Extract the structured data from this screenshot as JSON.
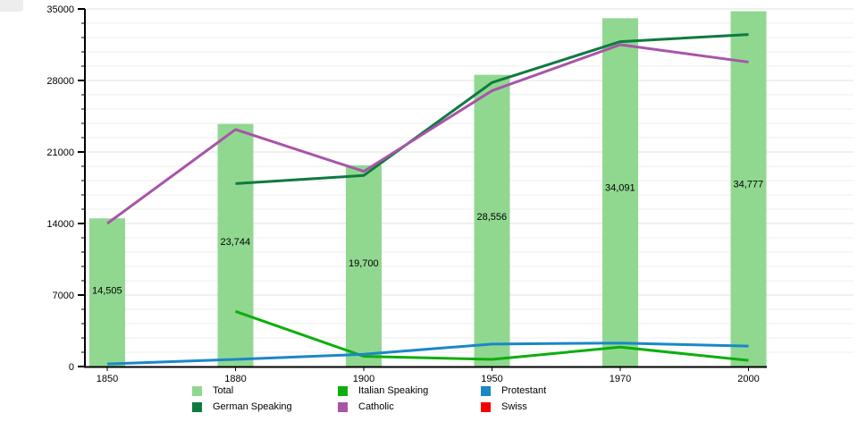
{
  "chart_data": {
    "type": "bar",
    "subtype": "bar-line-combo",
    "categories": [
      "1850",
      "1880",
      "1900",
      "1950",
      "1970",
      "2000"
    ],
    "y_axis": {
      "min": 0,
      "max": 35000,
      "major_step": 7000,
      "minor_step": 1400,
      "tick_labels": [
        "0",
        "7000",
        "14000",
        "21000",
        "28000",
        "35000"
      ]
    },
    "bars": {
      "name": "Total",
      "color": "#90d890",
      "values": [
        14505,
        23744,
        19700,
        28556,
        34091,
        34777
      ],
      "labels": [
        "14,505",
        "23,744",
        "19,700",
        "28,556",
        "34,091",
        "34,777"
      ]
    },
    "series": [
      {
        "name": "German Speaking",
        "color": "#0f7a40",
        "values": [
          null,
          17900,
          18700,
          27800,
          31800,
          32500
        ]
      },
      {
        "name": "Italian Speaking",
        "color": "#0caf0c",
        "values": [
          null,
          5400,
          1000,
          700,
          1900,
          600
        ]
      },
      {
        "name": "Protestant",
        "color": "#1a87c9",
        "values": [
          250,
          700,
          1200,
          2200,
          2300,
          2000
        ]
      },
      {
        "name": "Catholic",
        "color": "#a855a8",
        "values": [
          14000,
          23200,
          19100,
          27000,
          31500,
          29800
        ]
      }
    ],
    "grid": {
      "horizontal": true,
      "vertical": false
    },
    "legend_position": "bottom",
    "legend": {
      "columns": [
        [
          {
            "label": "Total",
            "color": "#90d890"
          },
          {
            "label": "German Speaking",
            "color": "#0f7a40"
          }
        ],
        [
          {
            "label": "Italian Speaking",
            "color": "#0caf0c"
          },
          {
            "label": "Catholic",
            "color": "#a855a8"
          }
        ],
        [
          {
            "label": "Protestant",
            "color": "#1a87c9"
          },
          {
            "label": "Swiss",
            "color": "#f40000"
          }
        ]
      ]
    },
    "title": "",
    "xlabel": "",
    "ylabel": ""
  }
}
